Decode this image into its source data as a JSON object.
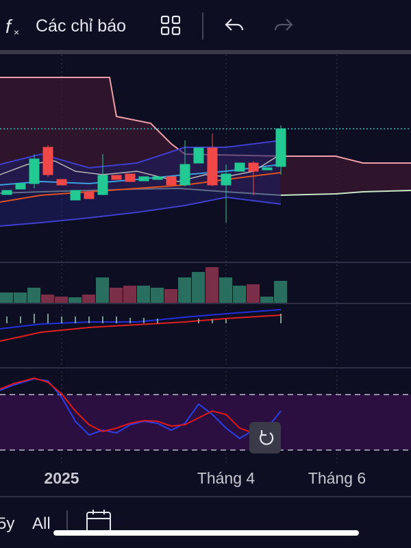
{
  "toolbar": {
    "indicators_label": "Các chỉ báo"
  },
  "x_axis": {
    "labels": [
      "2025",
      "Tháng 4",
      "Tháng 6"
    ]
  },
  "range_bar": {
    "buttons": [
      "5y",
      "All"
    ]
  }
}
